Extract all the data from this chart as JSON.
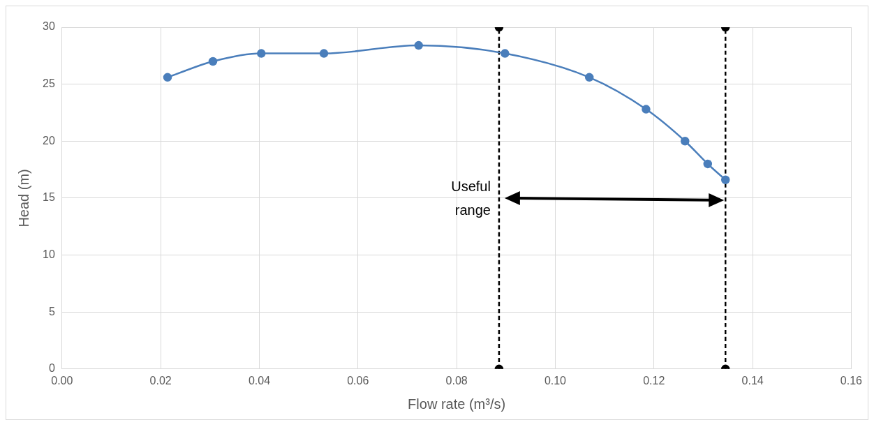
{
  "chart_data": {
    "type": "line",
    "xlabel": "Flow rate (m³/s)",
    "ylabel": "Head (m)",
    "xlim": [
      0,
      0.16
    ],
    "xticks": [
      {
        "value": 0,
        "label": "0.00"
      },
      {
        "value": 0.02,
        "label": "0.02"
      },
      {
        "value": 0.04,
        "label": "0.04"
      },
      {
        "value": 0.06,
        "label": "0.06"
      },
      {
        "value": 0.08,
        "label": "0.08"
      },
      {
        "value": 0.1,
        "label": "0.10"
      },
      {
        "value": 0.12,
        "label": "0.12"
      },
      {
        "value": 0.14,
        "label": "0.14"
      },
      {
        "value": 0.16,
        "label": "0.16"
      }
    ],
    "ylim": [
      0,
      30
    ],
    "yticks": [
      0,
      5,
      10,
      15,
      20,
      25,
      30
    ],
    "grid": true,
    "legend": false,
    "series": [
      {
        "color": "#4a7ebb",
        "marker": "circle",
        "line_style": "solid",
        "x": [
          0.0214,
          0.0306,
          0.0404,
          0.0531,
          0.0723,
          0.0898,
          0.1069,
          0.1184,
          0.1263,
          0.1309,
          0.1345
        ],
        "values": [
          25.6,
          27.0,
          27.7,
          27.7,
          28.4,
          27.7,
          25.6,
          22.8,
          20.0,
          18.0,
          16.6
        ]
      },
      {
        "type": "line",
        "color": "#000000",
        "marker": "circle",
        "line_style": "dashed",
        "x": [
          0.0886,
          0.0886
        ],
        "values": [
          0,
          30
        ]
      },
      {
        "type": "line",
        "color": "#000000",
        "marker": "circle",
        "line_style": "dashed",
        "x": [
          0.1345,
          0.1345
        ],
        "values": [
          0,
          30
        ]
      }
    ],
    "annotations": [
      {
        "text": "Useful range",
        "x": 0.0886,
        "y": 15
      }
    ]
  }
}
